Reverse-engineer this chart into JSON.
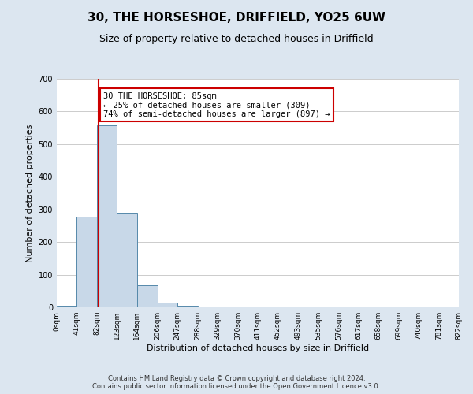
{
  "title": "30, THE HORSESHOE, DRIFFIELD, YO25 6UW",
  "subtitle": "Size of property relative to detached houses in Driffield",
  "xlabel": "Distribution of detached houses by size in Driffield",
  "ylabel": "Number of detached properties",
  "bar_edges": [
    0,
    41,
    82,
    123,
    164,
    206,
    247,
    288,
    329,
    370,
    411,
    452,
    493,
    535,
    576,
    617,
    658,
    699,
    740,
    781,
    822
  ],
  "bar_heights": [
    5,
    278,
    557,
    290,
    68,
    14,
    5,
    0,
    0,
    0,
    0,
    0,
    0,
    0,
    0,
    0,
    0,
    0,
    0,
    0
  ],
  "bar_color": "#c8d8e8",
  "bar_edgecolor": "#5588aa",
  "ylim": [
    0,
    700
  ],
  "yticks": [
    0,
    100,
    200,
    300,
    400,
    500,
    600,
    700
  ],
  "property_size": 85,
  "vline_color": "#cc0000",
  "annotation_text": "30 THE HORSESHOE: 85sqm\n← 25% of detached houses are smaller (309)\n74% of semi-detached houses are larger (897) →",
  "annotation_box_edgecolor": "#cc0000",
  "annotation_box_facecolor": "#ffffff",
  "footer_text": "Contains HM Land Registry data © Crown copyright and database right 2024.\nContains public sector information licensed under the Open Government Licence v3.0.",
  "tick_labels": [
    "0sqm",
    "41sqm",
    "82sqm",
    "123sqm",
    "164sqm",
    "206sqm",
    "247sqm",
    "288sqm",
    "329sqm",
    "370sqm",
    "411sqm",
    "452sqm",
    "493sqm",
    "535sqm",
    "576sqm",
    "617sqm",
    "658sqm",
    "699sqm",
    "740sqm",
    "781sqm",
    "822sqm"
  ],
  "background_color": "#dce6f0",
  "plot_bg_color": "#ffffff",
  "title_fontsize": 11,
  "subtitle_fontsize": 9,
  "xlabel_fontsize": 8,
  "ylabel_fontsize": 8,
  "tick_fontsize": 6.5,
  "annotation_fontsize": 7.5,
  "footer_fontsize": 6
}
